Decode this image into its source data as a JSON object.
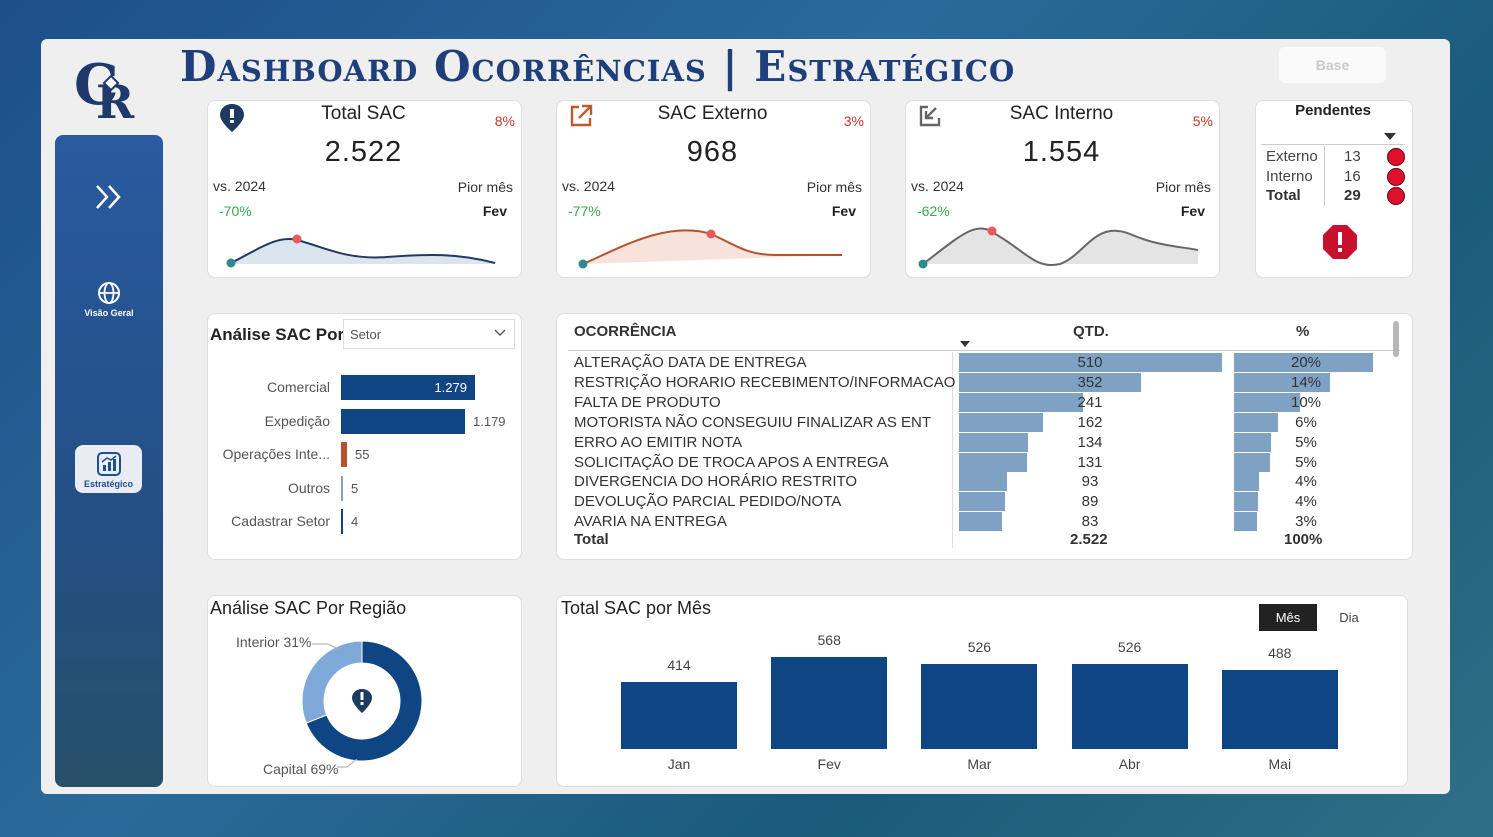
{
  "header": {
    "title": "Dashboard Ocorrências | Estratégico",
    "logo_text": "CR",
    "base_button": "Base"
  },
  "sidebar": {
    "items": [
      {
        "label": "",
        "icon": "chevron-double-right-icon"
      },
      {
        "label": "Visão Geral",
        "icon": "globe-icon"
      },
      {
        "label": "Estratégico",
        "icon": "chart-icon"
      }
    ]
  },
  "kpis": [
    {
      "title": "Total SAC",
      "value": "2.522",
      "pct": "8%",
      "vs_label": "vs. 2024",
      "vs_value": "-70%",
      "worst_label": "Pior mês",
      "worst_value": "Fev",
      "icon": "alert-icon",
      "color": "#1f3a5f"
    },
    {
      "title": "SAC Externo",
      "value": "968",
      "pct": "3%",
      "vs_label": "vs. 2024",
      "vs_value": "-77%",
      "worst_label": "Pior mês",
      "worst_value": "Fev",
      "icon": "external-arrow-icon",
      "color": "#b5532e"
    },
    {
      "title": "SAC Interno",
      "value": "1.554",
      "pct": "5%",
      "vs_label": "vs. 2024",
      "vs_value": "-62%",
      "worst_label": "Pior mês",
      "worst_value": "Fev",
      "icon": "internal-arrow-icon",
      "color": "#666666"
    }
  ],
  "pendentes": {
    "title": "Pendentes",
    "rows": [
      {
        "label": "Externo",
        "value": "13"
      },
      {
        "label": "Interno",
        "value": "16"
      },
      {
        "label": "Total",
        "value": "29"
      }
    ]
  },
  "analise_setor": {
    "title": "Análise SAC Por",
    "dropdown": "Setor",
    "items": [
      {
        "label": "Comercial",
        "value": "1.279",
        "num": 1279,
        "color": "#0f4583"
      },
      {
        "label": "Expedição",
        "value": "1.179",
        "num": 1179,
        "color": "#0f4583"
      },
      {
        "label": "Operações Inte...",
        "value": "55",
        "num": 55,
        "color": "#b5532e"
      },
      {
        "label": "Outros",
        "value": "5",
        "num": 5,
        "color": "#7fa1c4"
      },
      {
        "label": "Cadastrar Setor",
        "value": "4",
        "num": 4,
        "color": "#0f4583"
      }
    ]
  },
  "ocorrencias": {
    "headers": {
      "name": "OCORRÊNCIA",
      "qtd": "QTD.",
      "pct": "%"
    },
    "rows": [
      {
        "name": "ALTERAÇÃO DATA DE ENTREGA",
        "qtd": "510",
        "num": 510,
        "pct": "20%"
      },
      {
        "name": "RESTRIÇÃO HORARIO RECEBIMENTO/INFORMACAO",
        "qtd": "352",
        "num": 352,
        "pct": "14%"
      },
      {
        "name": "FALTA DE PRODUTO",
        "qtd": "241",
        "num": 241,
        "pct": "10%"
      },
      {
        "name": "MOTORISTA NÃO CONSEGUIU FINALIZAR AS ENT",
        "qtd": "162",
        "num": 162,
        "pct": "6%"
      },
      {
        "name": "ERRO AO EMITIR NOTA",
        "qtd": "134",
        "num": 134,
        "pct": "5%"
      },
      {
        "name": "SOLICITAÇÃO DE TROCA APOS A ENTREGA",
        "qtd": "131",
        "num": 131,
        "pct": "5%"
      },
      {
        "name": "DIVERGENCIA DO HORÁRIO RESTRITO",
        "qtd": "93",
        "num": 93,
        "pct": "4%"
      },
      {
        "name": "DEVOLUÇÃO PARCIAL PEDIDO/NOTA",
        "qtd": "89",
        "num": 89,
        "pct": "4%"
      },
      {
        "name": "AVARIA NA ENTREGA",
        "qtd": "83",
        "num": 83,
        "pct": "3%"
      }
    ],
    "total": {
      "name": "Total",
      "qtd": "2.522",
      "pct": "100%"
    }
  },
  "regiao": {
    "title": "Análise SAC Por Região",
    "slices": [
      {
        "label": "Interior 31%",
        "value": 31,
        "color": "#7fa9d9"
      },
      {
        "label": "Capital 69%",
        "value": 69,
        "color": "#0f4583"
      }
    ]
  },
  "mes": {
    "title": "Total SAC por Mês",
    "toggle": {
      "active": "Mês",
      "inactive": "Dia"
    }
  },
  "chart_data": {
    "type": "bar",
    "title": "Total SAC por Mês",
    "categories": [
      "Jan",
      "Fev",
      "Mar",
      "Abr",
      "Mai"
    ],
    "values": [
      414,
      568,
      526,
      526,
      488
    ],
    "color": "#0f4583"
  }
}
